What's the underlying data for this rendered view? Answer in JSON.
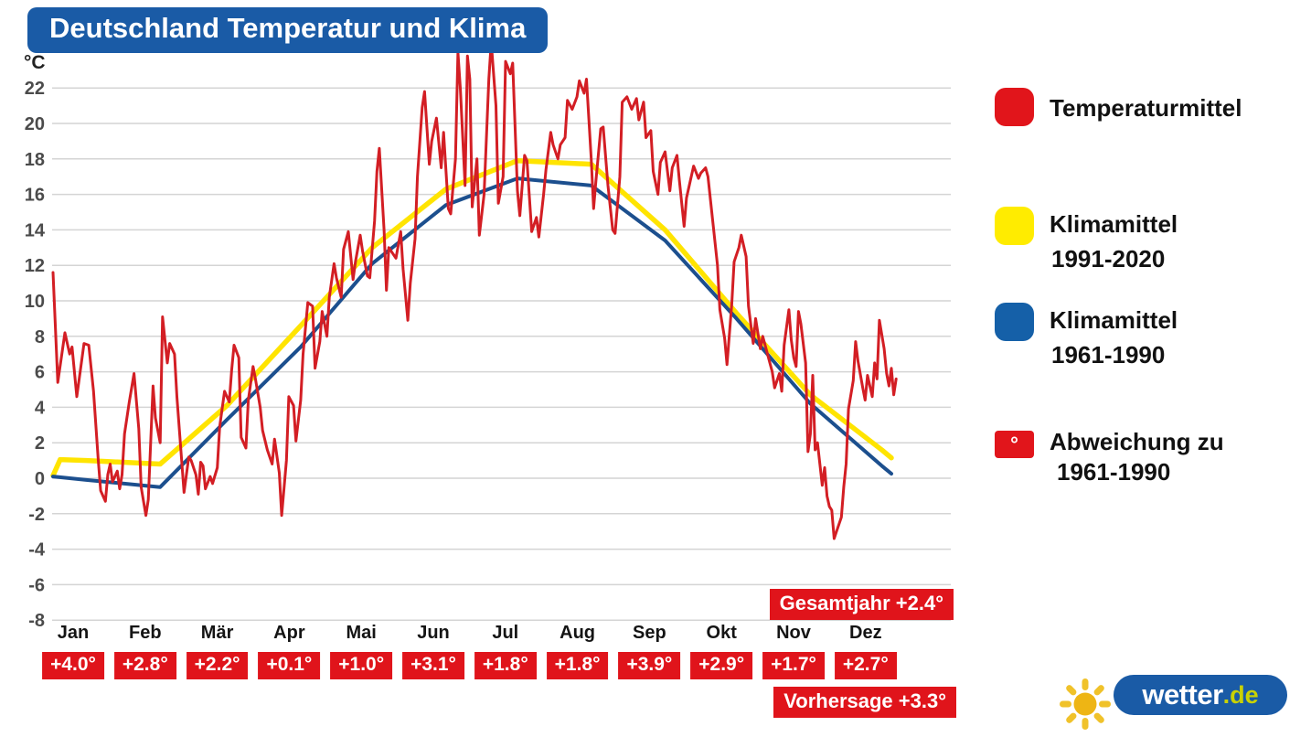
{
  "title": "Deutschland Temperatur und Klima",
  "legend": {
    "items": [
      {
        "label": "Temperaturmittel",
        "sublabel": "",
        "color": "#e1151b",
        "swatch": "large-round-square"
      },
      {
        "label": "Klimamittel",
        "sublabel": "1991-2020",
        "color": "#ffec00",
        "swatch": "large-round-square"
      },
      {
        "label": "Klimamittel",
        "sublabel": "1961-1990",
        "color": "#1560a8",
        "swatch": "large-round-square"
      },
      {
        "label": "Abweichung zu",
        "sublabel": "1961-1990",
        "color": "#e1151b",
        "swatch": "small-degree-chip",
        "glyph": "°"
      }
    ]
  },
  "branding": {
    "name": "wetter",
    "tld": ".de"
  },
  "colors": {
    "brand_blue": "#1a5ba6",
    "badge_red": "#e0141b",
    "grid": "#d4d4d4"
  },
  "chart_data": {
    "type": "line",
    "title": "Deutschland Temperatur und Klima",
    "ylabel": "°C",
    "ylim": [
      -8,
      22
    ],
    "ytick_step": 2,
    "grid": "horizontal-only",
    "legend_position": "right",
    "x_months": [
      "Jan",
      "Feb",
      "Mär",
      "Apr",
      "Mai",
      "Jun",
      "Jul",
      "Aug",
      "Sep",
      "Okt",
      "Nov",
      "Dez"
    ],
    "monthly_deviation_labels": [
      "+4.0°",
      "+2.8°",
      "+2.2°",
      "+0.1°",
      "+1.0°",
      "+3.1°",
      "+1.8°",
      "+1.8°",
      "+3.9°",
      "+2.9°",
      "+1.7°",
      "+2.7°"
    ],
    "annotations": {
      "gesamtjahr": "Gesamtjahr +2.4°",
      "vorhersage": "Vorhersage +3.3°"
    },
    "series": [
      {
        "name": "Temperaturmittel",
        "color": "#d31e24",
        "kind": "daily",
        "points_day_temp": [
          [
            1,
            11.6
          ],
          [
            3,
            5.4
          ],
          [
            6,
            8.2
          ],
          [
            8,
            7.0
          ],
          [
            9,
            7.4
          ],
          [
            11,
            4.6
          ],
          [
            14,
            7.6
          ],
          [
            16,
            7.5
          ],
          [
            18,
            4.9
          ],
          [
            20,
            1.0
          ],
          [
            21,
            -0.7
          ],
          [
            23,
            -1.3
          ],
          [
            24,
            0.2
          ],
          [
            25,
            0.8
          ],
          [
            26,
            -0.2
          ],
          [
            28,
            0.4
          ],
          [
            29,
            -0.6
          ],
          [
            30,
            0.2
          ],
          [
            31,
            2.5
          ],
          [
            33,
            4.3
          ],
          [
            35,
            5.9
          ],
          [
            37,
            2.8
          ],
          [
            38,
            -0.5
          ],
          [
            40,
            -2.1
          ],
          [
            41,
            -1.2
          ],
          [
            43,
            5.2
          ],
          [
            44,
            3.4
          ],
          [
            46,
            2.0
          ],
          [
            47,
            9.1
          ],
          [
            49,
            6.5
          ],
          [
            50,
            7.6
          ],
          [
            52,
            7.0
          ],
          [
            53,
            4.6
          ],
          [
            54,
            2.8
          ],
          [
            56,
            -0.8
          ],
          [
            58,
            1.2
          ],
          [
            59,
            1.0
          ],
          [
            61,
            0.2
          ],
          [
            62,
            -0.9
          ],
          [
            63,
            0.9
          ],
          [
            64,
            0.7
          ],
          [
            65,
            -0.6
          ],
          [
            67,
            0.1
          ],
          [
            68,
            -0.3
          ],
          [
            70,
            0.6
          ],
          [
            71,
            2.9
          ],
          [
            73,
            4.9
          ],
          [
            75,
            4.3
          ],
          [
            76,
            6.1
          ],
          [
            77,
            7.5
          ],
          [
            79,
            6.8
          ],
          [
            80,
            2.3
          ],
          [
            82,
            1.7
          ],
          [
            83,
            4.4
          ],
          [
            85,
            6.3
          ],
          [
            86,
            5.6
          ],
          [
            88,
            4.0
          ],
          [
            89,
            2.7
          ],
          [
            91,
            1.6
          ],
          [
            93,
            0.8
          ],
          [
            94,
            2.2
          ],
          [
            96,
            0.3
          ],
          [
            97,
            -2.1
          ],
          [
            99,
            1.0
          ],
          [
            100,
            4.6
          ],
          [
            102,
            4.1
          ],
          [
            103,
            2.1
          ],
          [
            105,
            4.4
          ],
          [
            106,
            7.0
          ],
          [
            108,
            9.9
          ],
          [
            110,
            9.7
          ],
          [
            111,
            6.2
          ],
          [
            113,
            7.7
          ],
          [
            114,
            9.4
          ],
          [
            116,
            8.0
          ],
          [
            117,
            10.2
          ],
          [
            119,
            12.1
          ],
          [
            120,
            11.3
          ],
          [
            122,
            10.2
          ],
          [
            123,
            12.9
          ],
          [
            125,
            13.9
          ],
          [
            127,
            11.2
          ],
          [
            128,
            12.2
          ],
          [
            130,
            13.7
          ],
          [
            131,
            12.8
          ],
          [
            133,
            11.4
          ],
          [
            134,
            11.3
          ],
          [
            136,
            14.5
          ],
          [
            137,
            17.3
          ],
          [
            138,
            18.6
          ],
          [
            140,
            14.0
          ],
          [
            141,
            10.6
          ],
          [
            142,
            13.0
          ],
          [
            144,
            12.6
          ],
          [
            145,
            12.4
          ],
          [
            147,
            13.9
          ],
          [
            148,
            11.8
          ],
          [
            150,
            8.9
          ],
          [
            151,
            11.0
          ],
          [
            153,
            13.5
          ],
          [
            154,
            17.0
          ],
          [
            156,
            20.9
          ],
          [
            157,
            21.8
          ],
          [
            159,
            17.7
          ],
          [
            160,
            19.0
          ],
          [
            162,
            20.3
          ],
          [
            164,
            17.5
          ],
          [
            165,
            19.5
          ],
          [
            167,
            15.2
          ],
          [
            168,
            14.9
          ],
          [
            170,
            18.0
          ],
          [
            171,
            24.0
          ],
          [
            172,
            22.0
          ],
          [
            174,
            16.5
          ],
          [
            175,
            23.8
          ],
          [
            176,
            22.5
          ],
          [
            177,
            15.3
          ],
          [
            179,
            18.0
          ],
          [
            180,
            13.7
          ],
          [
            182,
            16.0
          ],
          [
            184,
            22.5
          ],
          [
            185,
            24.6
          ],
          [
            187,
            21.0
          ],
          [
            188,
            15.5
          ],
          [
            190,
            17.0
          ],
          [
            191,
            23.5
          ],
          [
            193,
            22.8
          ],
          [
            194,
            23.4
          ],
          [
            196,
            16.2
          ],
          [
            197,
            14.8
          ],
          [
            199,
            18.2
          ],
          [
            200,
            17.9
          ],
          [
            202,
            13.9
          ],
          [
            204,
            14.7
          ],
          [
            205,
            13.6
          ],
          [
            207,
            16.0
          ],
          [
            208,
            17.4
          ],
          [
            210,
            19.5
          ],
          [
            211,
            18.8
          ],
          [
            213,
            18.0
          ],
          [
            214,
            18.8
          ],
          [
            216,
            19.2
          ],
          [
            217,
            21.3
          ],
          [
            219,
            20.8
          ],
          [
            221,
            21.5
          ],
          [
            222,
            22.4
          ],
          [
            224,
            21.7
          ],
          [
            225,
            22.5
          ],
          [
            227,
            18.0
          ],
          [
            228,
            15.2
          ],
          [
            229,
            16.8
          ],
          [
            231,
            19.7
          ],
          [
            232,
            19.8
          ],
          [
            234,
            16.5
          ],
          [
            236,
            14.0
          ],
          [
            237,
            13.8
          ],
          [
            239,
            17.0
          ],
          [
            240,
            21.2
          ],
          [
            242,
            21.5
          ],
          [
            244,
            20.8
          ],
          [
            246,
            21.4
          ],
          [
            247,
            20.2
          ],
          [
            249,
            21.2
          ],
          [
            250,
            19.2
          ],
          [
            252,
            19.6
          ],
          [
            253,
            17.3
          ],
          [
            255,
            16.0
          ],
          [
            256,
            17.8
          ],
          [
            258,
            18.4
          ],
          [
            260,
            16.2
          ],
          [
            261,
            17.5
          ],
          [
            263,
            18.2
          ],
          [
            264,
            16.8
          ],
          [
            266,
            14.2
          ],
          [
            267,
            15.8
          ],
          [
            269,
            17.0
          ],
          [
            270,
            17.6
          ],
          [
            272,
            16.9
          ],
          [
            273,
            17.2
          ],
          [
            275,
            17.5
          ],
          [
            276,
            17.0
          ],
          [
            278,
            14.5
          ],
          [
            280,
            12.0
          ],
          [
            281,
            9.5
          ],
          [
            283,
            7.9
          ],
          [
            284,
            6.4
          ],
          [
            286,
            9.8
          ],
          [
            287,
            12.2
          ],
          [
            289,
            13.0
          ],
          [
            290,
            13.7
          ],
          [
            292,
            12.5
          ],
          [
            293,
            9.7
          ],
          [
            295,
            7.6
          ],
          [
            296,
            9.0
          ],
          [
            298,
            7.3
          ],
          [
            299,
            8.0
          ],
          [
            301,
            7.0
          ],
          [
            303,
            6.0
          ],
          [
            304,
            5.1
          ],
          [
            306,
            5.9
          ],
          [
            307,
            4.9
          ],
          [
            308,
            7.5
          ],
          [
            310,
            9.5
          ],
          [
            311,
            7.8
          ],
          [
            312,
            6.8
          ],
          [
            313,
            6.3
          ],
          [
            314,
            9.4
          ],
          [
            315,
            8.7
          ],
          [
            317,
            6.5
          ],
          [
            318,
            1.5
          ],
          [
            319,
            2.5
          ],
          [
            320,
            5.8
          ],
          [
            321,
            1.6
          ],
          [
            322,
            2.0
          ],
          [
            324,
            -0.4
          ],
          [
            325,
            0.6
          ],
          [
            326,
            -1.0
          ],
          [
            327,
            -1.6
          ],
          [
            328,
            -1.8
          ],
          [
            329,
            -3.4
          ],
          [
            330,
            -3.0
          ],
          [
            332,
            -2.2
          ],
          [
            333,
            -0.5
          ],
          [
            334,
            0.8
          ],
          [
            335,
            3.9
          ],
          [
            337,
            5.5
          ],
          [
            338,
            7.7
          ],
          [
            339,
            6.6
          ],
          [
            341,
            5.1
          ],
          [
            342,
            4.4
          ],
          [
            343,
            5.8
          ],
          [
            345,
            4.6
          ],
          [
            346,
            6.5
          ],
          [
            347,
            5.6
          ],
          [
            348,
            8.9
          ],
          [
            350,
            7.3
          ],
          [
            351,
            5.9
          ],
          [
            352,
            5.2
          ],
          [
            353,
            6.2
          ],
          [
            354,
            4.7
          ],
          [
            355,
            5.6
          ]
        ]
      },
      {
        "name": "Klimamittel 1991-2020",
        "color": "#ffe400",
        "kind": "monthly-climate",
        "monthly_values": [
          1.0,
          0.8,
          4.1,
          8.6,
          13.0,
          16.3,
          17.9,
          17.7,
          14.0,
          9.3,
          4.7,
          1.6
        ]
      },
      {
        "name": "Klimamittel 1961-1990",
        "color": "#1c4f8e",
        "kind": "monthly-climate",
        "monthly_values": [
          -0.1,
          -0.5,
          3.3,
          7.4,
          12.1,
          15.4,
          16.9,
          16.5,
          13.4,
          9.0,
          4.2,
          0.7
        ]
      }
    ]
  }
}
